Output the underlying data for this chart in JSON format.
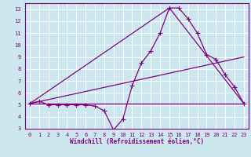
{
  "xlabel": "Windchill (Refroidissement éolien,°C)",
  "background_color": "#cce8ee",
  "grid_color": "#ffffff",
  "line_color": "#800080",
  "xlim": [
    -0.5,
    23.5
  ],
  "ylim": [
    3,
    13.5
  ],
  "xticks": [
    0,
    1,
    2,
    3,
    4,
    5,
    6,
    7,
    8,
    9,
    10,
    11,
    12,
    13,
    14,
    15,
    16,
    17,
    18,
    19,
    20,
    21,
    22,
    23
  ],
  "yticks": [
    3,
    4,
    5,
    6,
    7,
    8,
    9,
    10,
    11,
    12,
    13
  ],
  "lines": [
    {
      "x": [
        0,
        1,
        2,
        3,
        4,
        5,
        6,
        7,
        8,
        9,
        10,
        11,
        12,
        13,
        14,
        15,
        16,
        17,
        18,
        19,
        20,
        21,
        22,
        23
      ],
      "y": [
        5.1,
        5.3,
        5.0,
        5.0,
        5.0,
        5.0,
        5.0,
        4.9,
        4.5,
        2.9,
        3.8,
        6.6,
        8.5,
        9.5,
        11.0,
        13.1,
        13.1,
        12.2,
        11.0,
        9.2,
        8.8,
        7.5,
        6.5,
        5.1
      ],
      "marker": true
    },
    {
      "x": [
        0,
        23
      ],
      "y": [
        5.1,
        5.1
      ],
      "marker": false
    },
    {
      "x": [
        0,
        23
      ],
      "y": [
        5.1,
        9.0
      ],
      "marker": false
    },
    {
      "x": [
        0,
        15,
        23
      ],
      "y": [
        5.1,
        13.1,
        5.1
      ],
      "marker": false
    }
  ],
  "marker": "+",
  "markersize": 4,
  "linewidth": 0.9,
  "tick_fontsize": 5,
  "xlabel_fontsize": 5.5
}
